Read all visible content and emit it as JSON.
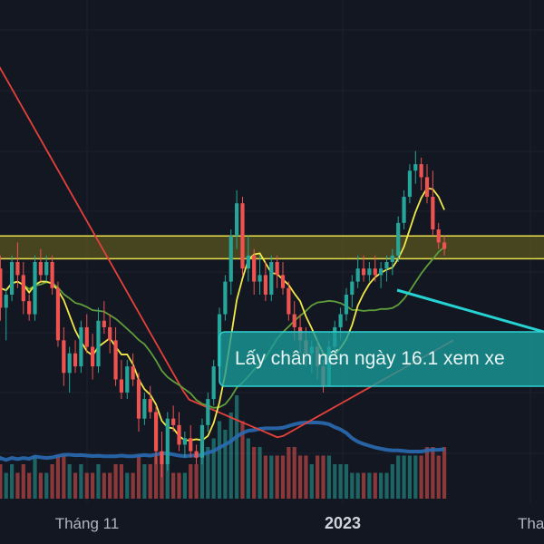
{
  "chart_data": {
    "type": "candlestick",
    "x_axis": {
      "tick_labels": [
        "Tháng 11",
        "2023",
        "Tha"
      ]
    },
    "y_axis": {
      "labels": []
    },
    "colors": {
      "background": "#131722",
      "grid": "#1e222d",
      "up": "#26a69a",
      "down": "#ef5350",
      "ma_fast": "#f3e84a",
      "ma_mid": "#5f9e3a",
      "ma_slow": "#e5403a",
      "volume_ma": "#2a6bb3",
      "zone_fill": "#5d5a1f",
      "zone_border": "#e8e04a",
      "note_fill": "#1aa3a3",
      "note_border": "#26d3d3"
    },
    "zone": {
      "top": 12.2,
      "bottom": 11.85
    },
    "note": {
      "text": "Lấy chân nến ngày 16.1 xem xe"
    },
    "candles": [
      [
        12.0,
        12.3,
        11.5,
        11.7,
        3
      ],
      [
        11.7,
        11.9,
        10.9,
        11.1,
        4
      ],
      [
        11.1,
        11.4,
        10.6,
        11.3,
        3
      ],
      [
        11.3,
        11.9,
        11.2,
        11.8,
        4
      ],
      [
        11.8,
        12.1,
        11.4,
        11.6,
        3
      ],
      [
        11.6,
        11.8,
        11.0,
        11.2,
        4
      ],
      [
        11.2,
        11.3,
        10.9,
        11.0,
        3
      ],
      [
        11.0,
        11.9,
        10.9,
        11.8,
        5
      ],
      [
        11.8,
        12.0,
        11.5,
        11.6,
        3
      ],
      [
        11.6,
        11.9,
        11.5,
        11.8,
        3
      ],
      [
        11.8,
        11.9,
        11.3,
        11.4,
        4
      ],
      [
        11.4,
        11.5,
        10.5,
        10.6,
        5
      ],
      [
        10.6,
        10.8,
        9.9,
        10.1,
        5
      ],
      [
        10.1,
        10.5,
        9.8,
        10.4,
        4
      ],
      [
        10.4,
        10.6,
        10.1,
        10.2,
        3
      ],
      [
        10.2,
        10.9,
        10.1,
        10.8,
        4
      ],
      [
        10.8,
        11.0,
        10.4,
        10.5,
        3
      ],
      [
        10.5,
        10.7,
        10.0,
        10.2,
        3
      ],
      [
        10.2,
        11.1,
        10.1,
        10.9,
        4
      ],
      [
        10.9,
        11.2,
        10.7,
        10.8,
        3
      ],
      [
        10.8,
        11.0,
        10.4,
        10.6,
        3
      ],
      [
        10.6,
        10.8,
        9.9,
        10.0,
        4
      ],
      [
        10.0,
        10.3,
        9.7,
        9.8,
        4
      ],
      [
        9.8,
        10.3,
        9.7,
        10.2,
        3
      ],
      [
        10.2,
        10.4,
        9.9,
        10.0,
        3
      ],
      [
        10.0,
        10.1,
        9.2,
        9.4,
        5
      ],
      [
        9.4,
        9.8,
        9.3,
        9.7,
        4
      ],
      [
        9.7,
        9.9,
        9.4,
        9.5,
        4
      ],
      [
        9.5,
        9.6,
        8.7,
        8.9,
        5
      ],
      [
        8.9,
        9.2,
        8.5,
        8.7,
        5
      ],
      [
        8.7,
        9.5,
        8.6,
        9.4,
        4
      ],
      [
        9.4,
        9.6,
        9.2,
        9.3,
        3
      ],
      [
        9.3,
        9.5,
        8.9,
        9.0,
        3
      ],
      [
        9.0,
        9.2,
        8.8,
        9.1,
        3
      ],
      [
        9.1,
        9.3,
        8.8,
        8.9,
        4
      ],
      [
        8.9,
        9.0,
        8.7,
        8.8,
        4
      ],
      [
        8.8,
        9.4,
        8.7,
        9.3,
        5
      ],
      [
        9.3,
        9.8,
        9.2,
        9.7,
        6
      ],
      [
        9.7,
        10.3,
        9.6,
        10.2,
        7
      ],
      [
        10.2,
        11.1,
        10.1,
        11.0,
        9
      ],
      [
        11.0,
        11.6,
        10.9,
        11.5,
        8
      ],
      [
        11.5,
        12.3,
        11.3,
        12.2,
        10
      ],
      [
        12.2,
        12.9,
        12.0,
        12.7,
        12
      ],
      [
        12.7,
        12.8,
        11.6,
        11.7,
        9
      ],
      [
        11.7,
        12.2,
        11.5,
        11.9,
        7
      ],
      [
        11.9,
        12.0,
        11.3,
        11.5,
        6
      ],
      [
        11.5,
        11.9,
        11.3,
        11.6,
        6
      ],
      [
        11.6,
        11.8,
        11.2,
        11.3,
        5
      ],
      [
        11.3,
        11.9,
        11.2,
        11.8,
        5
      ],
      [
        11.8,
        11.9,
        11.4,
        11.6,
        5
      ],
      [
        11.6,
        11.8,
        11.3,
        11.4,
        5
      ],
      [
        11.4,
        11.5,
        10.9,
        11.0,
        6
      ],
      [
        11.0,
        11.2,
        10.6,
        10.8,
        6
      ],
      [
        10.8,
        11.0,
        10.4,
        10.6,
        5
      ],
      [
        10.6,
        10.8,
        10.2,
        10.4,
        5
      ],
      [
        10.4,
        10.6,
        10.1,
        10.5,
        4
      ],
      [
        10.5,
        10.6,
        10.0,
        10.2,
        5
      ],
      [
        10.2,
        10.3,
        9.8,
        9.9,
        5
      ],
      [
        9.9,
        10.6,
        9.9,
        10.5,
        5
      ],
      [
        10.5,
        10.9,
        10.4,
        10.8,
        4
      ],
      [
        10.8,
        11.1,
        10.6,
        11.0,
        4
      ],
      [
        11.0,
        11.4,
        10.9,
        11.3,
        4
      ],
      [
        11.3,
        11.6,
        11.1,
        11.5,
        3
      ],
      [
        11.5,
        11.9,
        11.4,
        11.7,
        3
      ],
      [
        11.7,
        11.9,
        11.5,
        11.6,
        3
      ],
      [
        11.6,
        11.8,
        11.5,
        11.7,
        3
      ],
      [
        11.7,
        11.9,
        11.5,
        11.6,
        3
      ],
      [
        11.6,
        11.8,
        11.4,
        11.7,
        3
      ],
      [
        11.7,
        11.9,
        11.5,
        11.8,
        3
      ],
      [
        11.8,
        12.0,
        11.6,
        11.9,
        4
      ],
      [
        11.9,
        12.5,
        11.8,
        12.4,
        5
      ],
      [
        12.4,
        12.9,
        12.3,
        12.8,
        5
      ],
      [
        12.8,
        13.3,
        12.7,
        13.2,
        5
      ],
      [
        13.2,
        13.5,
        13.0,
        13.3,
        5
      ],
      [
        13.3,
        13.4,
        12.9,
        13.1,
        5
      ],
      [
        13.1,
        13.3,
        12.7,
        12.8,
        6
      ],
      [
        12.8,
        13.2,
        12.2,
        12.3,
        6
      ],
      [
        12.3,
        12.4,
        12.0,
        12.1,
        5
      ],
      [
        12.1,
        12.2,
        11.9,
        12.0,
        6
      ]
    ]
  }
}
